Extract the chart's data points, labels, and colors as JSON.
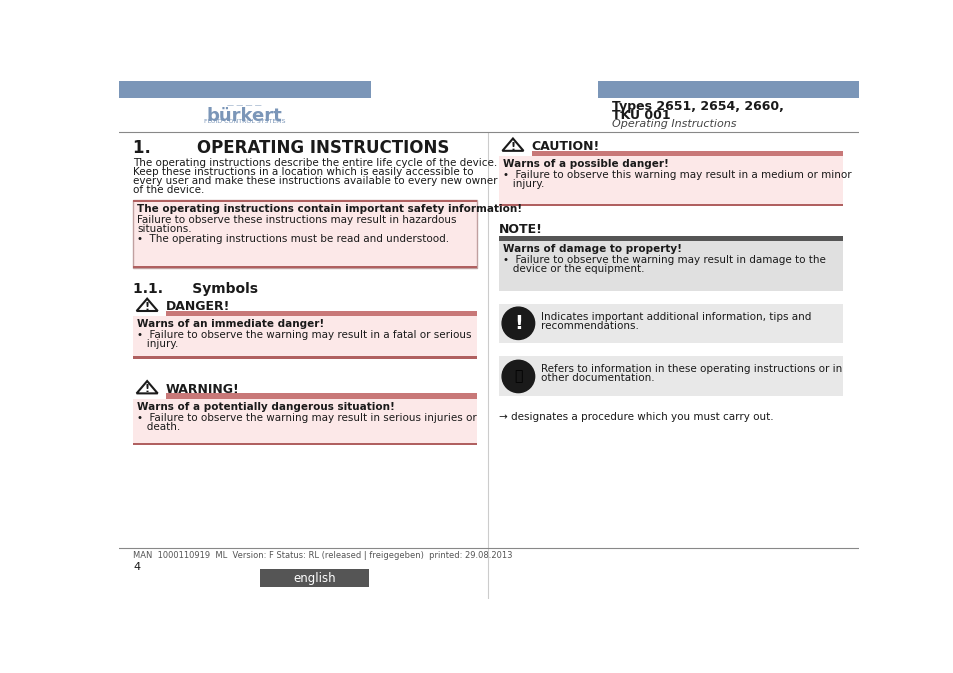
{
  "bg_color": "#ffffff",
  "header_bar_color": "#7b96b8",
  "title_right_line1": "Types 2651, 2654, 2660,",
  "title_right_line2": "TKU 001",
  "title_right_sub": "Operating Instructions",
  "section1_title": "1.        OPERATING INSTRUCTIONS",
  "section1_body1": "The operating instructions describe the entire life cycle of the device.",
  "section1_body2": "Keep these instructions in a location which is easily accessible to",
  "section1_body3": "every user and make these instructions available to every new owner",
  "section1_body4": "of the device.",
  "info_box_border": "#c0a0a0",
  "info_box_bg": "#fce8e8",
  "info_box_title": "The operating instructions contain important safety information!",
  "info_box_line1": "Failure to observe these instructions may result in hazardous",
  "info_box_line2": "situations.",
  "info_box_line3": "•  The operating instructions must be read and understood.",
  "info_box_bottom_line": "#b06060",
  "section11_title": "1.1.      Symbols",
  "danger_label": "DANGER!",
  "danger_bar_color": "#c87878",
  "danger_box_bg": "#fce8e8",
  "danger_title": "Warns of an immediate danger!",
  "danger_body1": "•  Failure to observe the warning may result in a fatal or serious",
  "danger_body2": "   injury.",
  "warning_label": "WARNING!",
  "warning_box_bg": "#fce8e8",
  "warning_title": "Warns of a potentially dangerous situation!",
  "warning_body1": "•  Failure to observe the warning may result in serious injuries or",
  "warning_body2": "   death.",
  "caution_label": "CAUTION!",
  "caution_box_bg": "#fce8e8",
  "caution_title": "Warns of a possible danger!",
  "caution_body1": "•  Failure to observe this warning may result in a medium or minor",
  "caution_body2": "   injury.",
  "note_label": "NOTE!",
  "note_bar_color": "#555555",
  "note_box_bg": "#e0e0e0",
  "note_title": "Warns of damage to property!",
  "note_body1": "•  Failure to observe the warning may result in damage to the",
  "note_body2": "   device or the equipment.",
  "info_circle_bg": "#e8e8e8",
  "info_circle_text1": "Indicates important additional information, tips and",
  "info_circle_text2": "recommendations.",
  "book_circle_bg": "#e8e8e8",
  "book_circle_text1": "Refers to information in these operating instructions or in",
  "book_circle_text2": "other documentation.",
  "arrow_text": "→ designates a procedure which you must carry out.",
  "footer_text": "MAN  1000110919  ML  Version: F Status: RL (released | freigegeben)  printed: 29.08.2013",
  "footer_page": "4",
  "footer_lang_bg": "#555555",
  "footer_lang_text": "english",
  "divider_color": "#888888",
  "text_color": "#1a1a1a",
  "burkert_color": "#7b96b8"
}
